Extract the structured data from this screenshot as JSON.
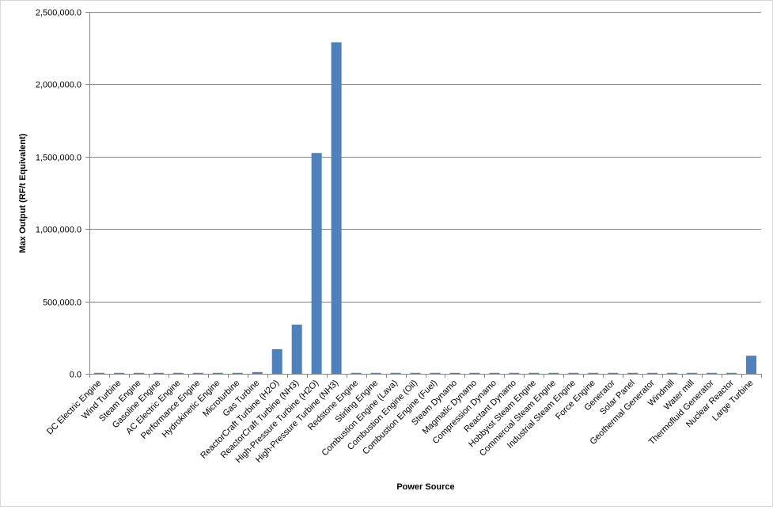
{
  "chart_data": {
    "type": "bar",
    "title": "",
    "xlabel": "Power Source",
    "ylabel": "Max Output (RF/t Equivalent)",
    "ylim": [
      0,
      2500000
    ],
    "y_ticks": [
      0,
      500000,
      1000000,
      1500000,
      2000000,
      2500000
    ],
    "y_tick_labels": [
      "0.0",
      "500,000.0",
      "1,000,000.0",
      "1,500,000.0",
      "2,000,000.0",
      "2,500,000.0"
    ],
    "grid": "horizontal",
    "legend": "none",
    "bar_color": "#4f81bd",
    "categories": [
      "DC Electric Engine",
      "Wind Turbine",
      "Steam Engine",
      "Gasoline Engine",
      "AC Electric Engine",
      "Performance Engine",
      "Hydrokinetic Engine",
      "Microturbine",
      "Gas Turbine",
      "ReactorCraft Turbine (H2O)",
      "ReactorCraft Turbine (NH3)",
      "High-Pressure Turbine (H2O)",
      "High-Pressure Turbine (NH3)",
      "Redstone Engine",
      "Stirling Engine",
      "Combustion Engine (Lava)",
      "Combustion Engine (Oil)",
      "Combustion Engine (Fuel)",
      "Steam Dynamo",
      "Magmatic Dynamo",
      "Compression Dynamo",
      "Reactant Dynamo",
      "Hobbyist Steam Engine",
      "Commercial Steam Engine",
      "Industrial Steam Engine",
      "Force Engine",
      "Generator",
      "Solar Panel",
      "Geothermal Generator",
      "Windmill",
      "Water mill",
      "Thermofluid Generator",
      "Nuclear Reactor",
      "Large Turbine"
    ],
    "values": [
      250,
      800,
      2000,
      2600,
      1800,
      3000,
      2100,
      2500,
      12000,
      170000,
      340000,
      1525000,
      2290000,
      1000,
      1300,
      1000,
      2000,
      2500,
      1600,
      1600,
      1600,
      2000,
      1500,
      1800,
      2400,
      1800,
      1000,
      1500,
      1700,
      1200,
      1200,
      80,
      1500,
      125000
    ]
  }
}
